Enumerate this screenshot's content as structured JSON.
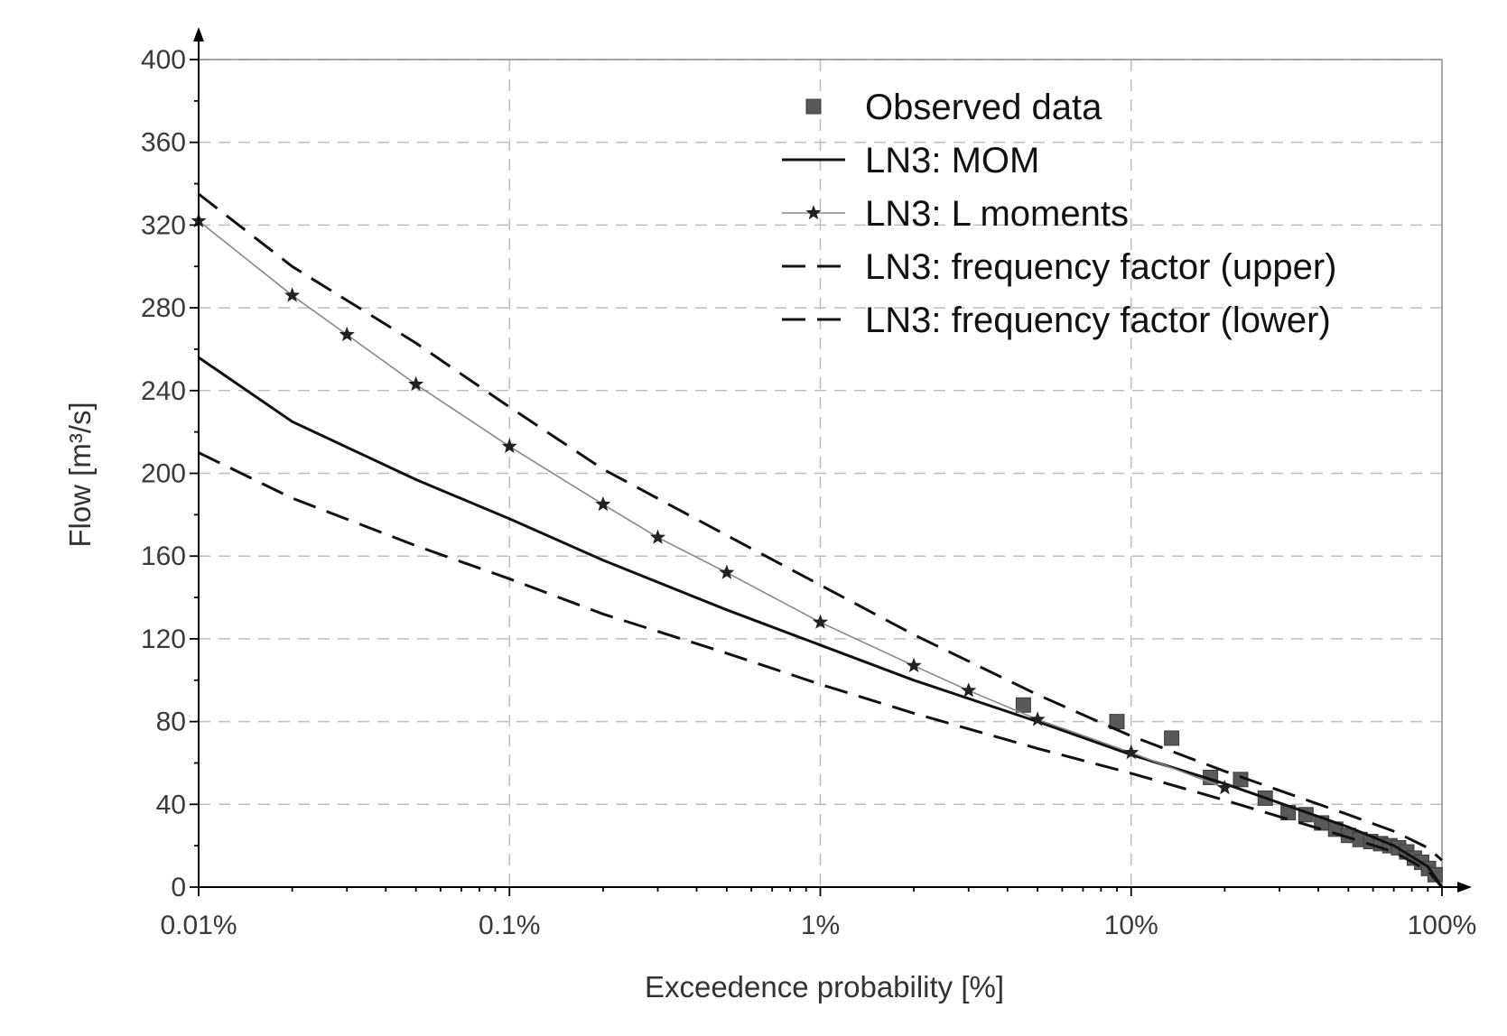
{
  "chart_data": {
    "type": "line",
    "title": "",
    "xlabel": "Exceedence probability [%]",
    "ylabel": "Flow [m³/s]",
    "xscale": "log",
    "xlim": [
      0.01,
      100
    ],
    "ylim": [
      0,
      400
    ],
    "grid": true,
    "legend_position": "top-right",
    "x_ticks": [
      {
        "value": 0.01,
        "label": "0.01%"
      },
      {
        "value": 0.1,
        "label": "0.1%"
      },
      {
        "value": 1,
        "label": "1%"
      },
      {
        "value": 10,
        "label": "10%"
      },
      {
        "value": 100,
        "label": "100%"
      }
    ],
    "y_ticks": [
      {
        "value": 0,
        "label": "0"
      },
      {
        "value": 40,
        "label": "40"
      },
      {
        "value": 80,
        "label": "80"
      },
      {
        "value": 120,
        "label": "120"
      },
      {
        "value": 160,
        "label": "160"
      },
      {
        "value": 200,
        "label": "200"
      },
      {
        "value": 240,
        "label": "240"
      },
      {
        "value": 280,
        "label": "280"
      },
      {
        "value": 320,
        "label": "320"
      },
      {
        "value": 360,
        "label": "360"
      },
      {
        "value": 400,
        "label": "400"
      }
    ],
    "series": [
      {
        "name": "Observed data",
        "style": "markers-square",
        "color": "#595959",
        "x": [
          4.5,
          9,
          13.5,
          18,
          22.5,
          27,
          32,
          36.5,
          41,
          45.5,
          50,
          54.5,
          59,
          63.5,
          68,
          72.5,
          77,
          81.5,
          86,
          90.5,
          95
        ],
        "y": [
          88,
          80,
          72,
          53,
          52,
          43,
          36,
          35,
          31,
          28,
          25,
          23,
          22,
          21,
          20,
          19,
          17,
          14,
          12,
          9,
          6
        ]
      },
      {
        "name": "LN3: MOM",
        "style": "solid",
        "color": "#111111",
        "x": [
          0.01,
          0.02,
          0.05,
          0.1,
          0.2,
          0.5,
          1,
          2,
          5,
          10,
          20,
          50,
          70,
          90,
          100
        ],
        "y": [
          256,
          225,
          197,
          178,
          158,
          134,
          117,
          100,
          80,
          64,
          50,
          29,
          20,
          10,
          0
        ]
      },
      {
        "name": "LN3: L moments",
        "style": "thin-with-stars",
        "color": "#888888",
        "marker_color": "#222222",
        "x": [
          0.01,
          0.02,
          0.03,
          0.05,
          0.1,
          0.2,
          0.3,
          0.5,
          1,
          2,
          3,
          5,
          10,
          20
        ],
        "y": [
          322,
          286,
          267,
          243,
          213,
          185,
          169,
          152,
          128,
          107,
          95,
          81,
          65,
          48
        ]
      },
      {
        "name": "LN3: frequency factor (upper)",
        "style": "dashed",
        "color": "#111111",
        "x": [
          0.01,
          0.02,
          0.05,
          0.1,
          0.2,
          0.5,
          1,
          2,
          5,
          10,
          20,
          50,
          70,
          90,
          100
        ],
        "y": [
          335,
          300,
          263,
          232,
          202,
          170,
          146,
          122,
          93,
          73,
          56,
          35,
          27,
          19,
          13
        ]
      },
      {
        "name": "LN3: frequency factor (lower)",
        "style": "dashed",
        "color": "#111111",
        "x": [
          0.01,
          0.02,
          0.05,
          0.1,
          0.2,
          0.5,
          1,
          2,
          5,
          10,
          20,
          50,
          70,
          90,
          100
        ],
        "y": [
          210,
          188,
          165,
          149,
          132,
          113,
          98,
          84,
          67,
          55,
          42,
          24,
          17,
          8,
          0
        ]
      }
    ]
  },
  "colors": {
    "grid": "#bdbdbd",
    "axis": "#000000",
    "text": "#333333"
  }
}
